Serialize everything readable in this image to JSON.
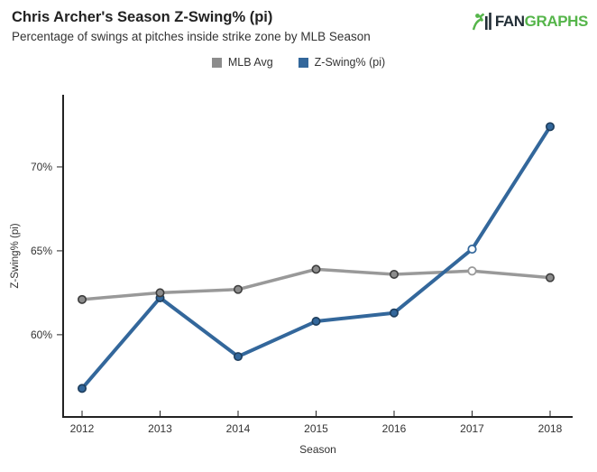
{
  "header": {
    "title": "Chris Archer's Season Z-Swing% (pi)",
    "subtitle": "Percentage of swings at pitches inside strike zone by MLB Season",
    "logo": {
      "fan": "FAN",
      "graphs": "GRAPHS",
      "fan_color": "#222e36",
      "graphs_color": "#55b54a",
      "icon": "fangraphs-batter-icon",
      "icon_color": "#55b54a",
      "bar_color": "#222e36"
    }
  },
  "legend": {
    "items": [
      {
        "label": "MLB Avg",
        "color": "#8c8c8c"
      },
      {
        "label": "Z-Swing% (pi)",
        "color": "#33679b"
      }
    ]
  },
  "chart_data": {
    "type": "line",
    "title": "Chris Archer's Season Z-Swing% (pi)",
    "x": [
      2012,
      2013,
      2014,
      2015,
      2016,
      2017,
      2018
    ],
    "xtick_labels": [
      "2012",
      "2013",
      "2014",
      "2015",
      "2016",
      "2017",
      "2018"
    ],
    "series": [
      {
        "name": "MLB Avg",
        "color": "#999999",
        "marker_fill": "#8c8c8c",
        "marker_stroke": "#3d3d3d",
        "open_marker_x": [
          2017
        ],
        "values": [
          62.1,
          62.5,
          62.7,
          63.9,
          63.6,
          63.8,
          63.4
        ]
      },
      {
        "name": "Z-Swing% (pi)",
        "color": "#33679b",
        "marker_fill": "#33679b",
        "marker_stroke": "#1d3d5c",
        "open_marker_x": [
          2017
        ],
        "values": [
          56.8,
          62.2,
          58.7,
          60.8,
          61.3,
          65.1,
          72.4
        ]
      }
    ],
    "xlabel": "Season",
    "ylabel": "Z-Swing% (pi)",
    "yticks": [
      60,
      65,
      70
    ],
    "ytick_labels": [
      "60%",
      "65%",
      "70%"
    ],
    "ylim": [
      55.1,
      74.3
    ],
    "grid": false,
    "legend_position": "top",
    "axis_color": "#222222",
    "text_color": "#333333",
    "open_marker_fill": "#ffffff"
  }
}
